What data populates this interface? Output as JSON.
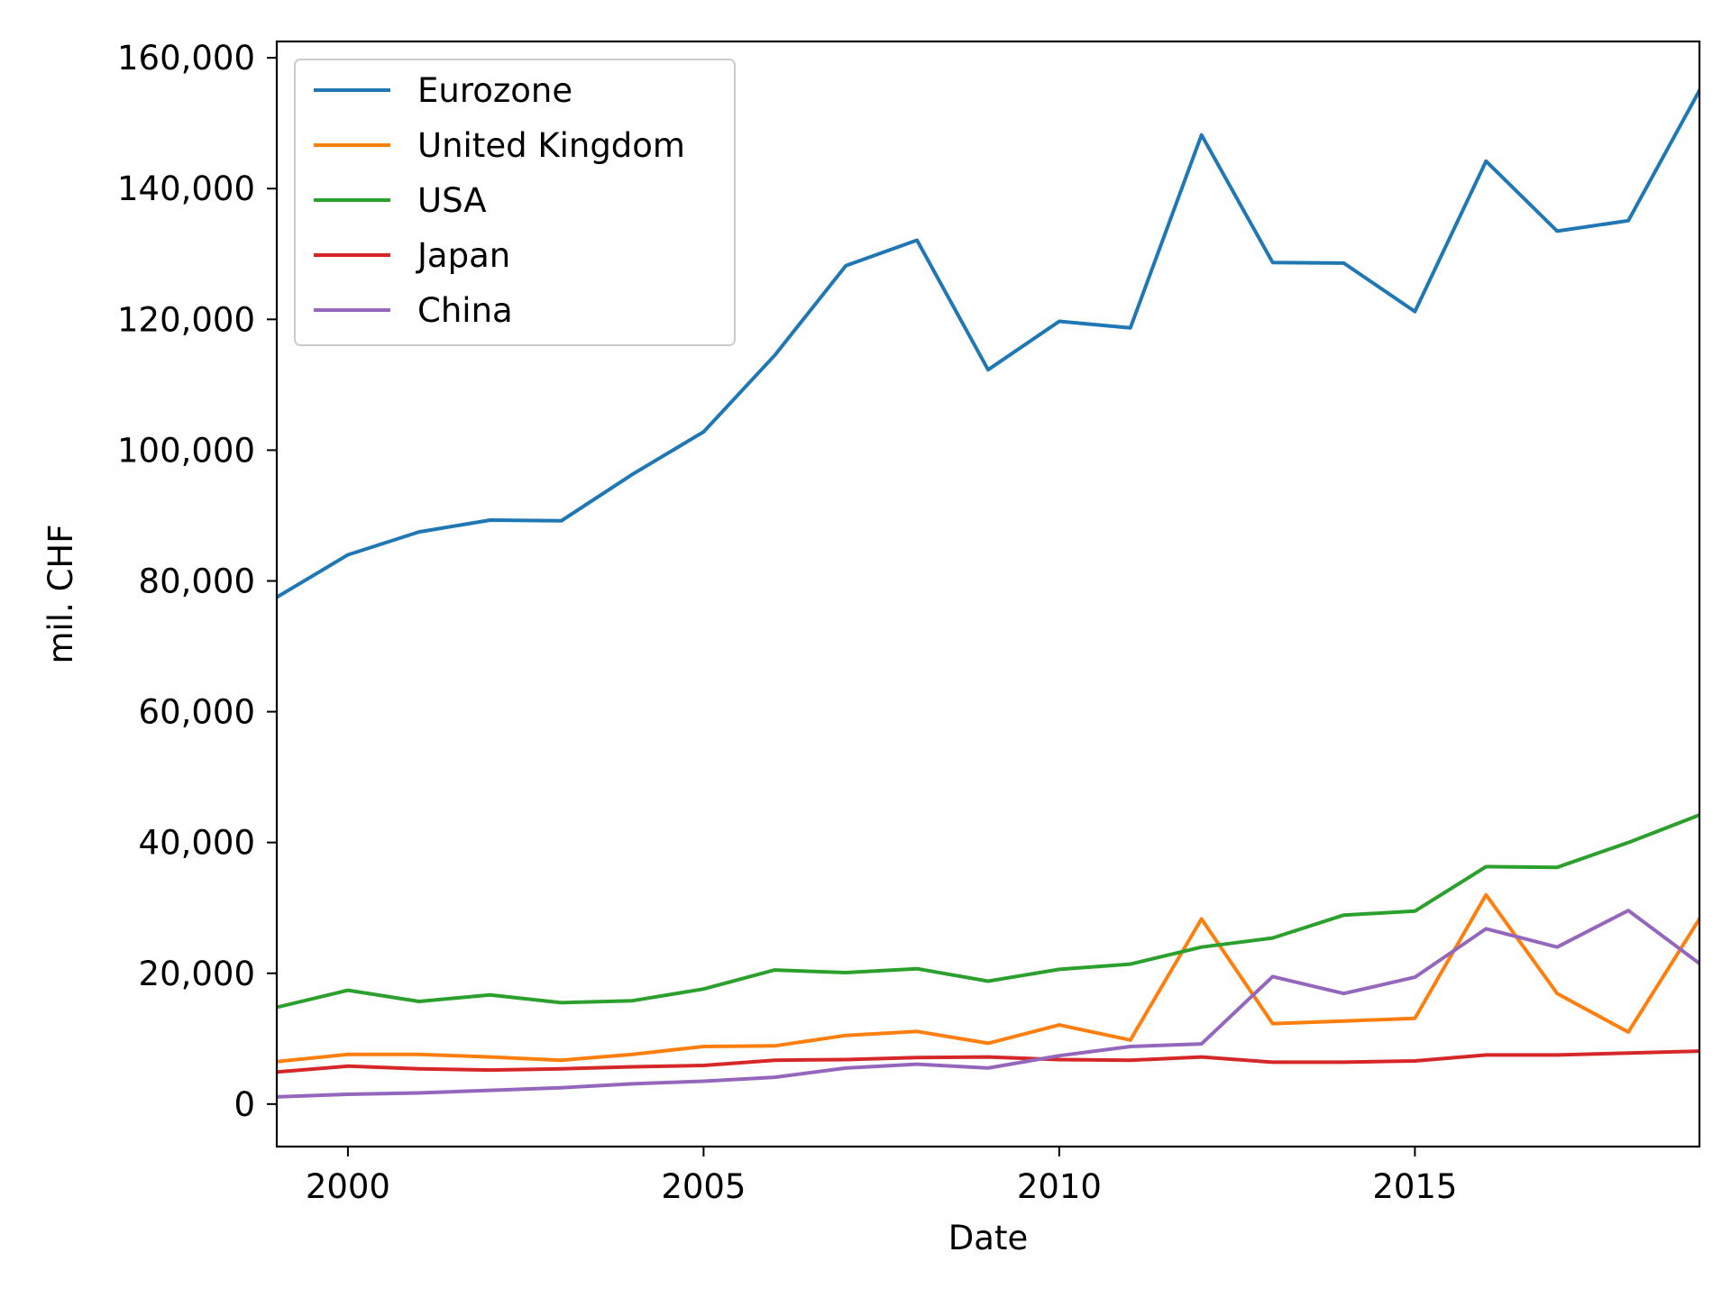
{
  "chart_data": {
    "type": "line",
    "title": "",
    "xlabel": "Date",
    "ylabel": "mil. CHF",
    "x": [
      1999,
      2000,
      2001,
      2002,
      2003,
      2004,
      2005,
      2006,
      2007,
      2008,
      2009,
      2010,
      2011,
      2012,
      2013,
      2014,
      2015,
      2016,
      2017,
      2018,
      2019
    ],
    "xlim": [
      1999,
      2019
    ],
    "ylim": [
      -6500,
      162500
    ],
    "x_ticks": [
      2000,
      2005,
      2010,
      2015
    ],
    "x_tick_labels": [
      "2000",
      "2005",
      "2010",
      "2015"
    ],
    "y_ticks": [
      0,
      20000,
      40000,
      60000,
      80000,
      100000,
      120000,
      140000,
      160000
    ],
    "y_tick_labels": [
      "0",
      "20,000",
      "40,000",
      "60,000",
      "80,000",
      "100,000",
      "120,000",
      "140,000",
      "160,000"
    ],
    "grid": false,
    "legend_position": "upper-left",
    "series": [
      {
        "name": "Eurozone",
        "color": "#1f77b4",
        "values": [
          77500,
          84000,
          87500,
          89300,
          89200,
          96300,
          102800,
          114500,
          128200,
          132100,
          112300,
          119700,
          118700,
          148200,
          128700,
          128600,
          121200,
          144200,
          133500,
          135100,
          155000
        ]
      },
      {
        "name": "United Kingdom",
        "color": "#ff7f0e",
        "values": [
          6500,
          7600,
          7600,
          7200,
          6700,
          7600,
          8800,
          8900,
          10500,
          11100,
          9300,
          12100,
          9800,
          28300,
          12300,
          12700,
          13100,
          32000,
          16900,
          11000,
          28300
        ]
      },
      {
        "name": "USA",
        "color": "#2ca02c",
        "values": [
          14800,
          17400,
          15700,
          16700,
          15500,
          15800,
          17600,
          20500,
          20100,
          20700,
          18800,
          20600,
          21400,
          24000,
          25400,
          28900,
          29500,
          36300,
          36200,
          40000,
          44200
        ]
      },
      {
        "name": "Japan",
        "color": "#d62728",
        "values": [
          4900,
          5800,
          5400,
          5200,
          5400,
          5700,
          5900,
          6700,
          6800,
          7100,
          7200,
          6800,
          6700,
          7200,
          6400,
          6400,
          6600,
          7500,
          7500,
          7800,
          8100
        ]
      },
      {
        "name": "China",
        "color": "#9467bd",
        "values": [
          1100,
          1500,
          1700,
          2100,
          2500,
          3100,
          3500,
          4100,
          5500,
          6100,
          5500,
          7400,
          8800,
          9200,
          19500,
          16900,
          19400,
          26800,
          24000,
          29600,
          21500
        ]
      }
    ]
  }
}
